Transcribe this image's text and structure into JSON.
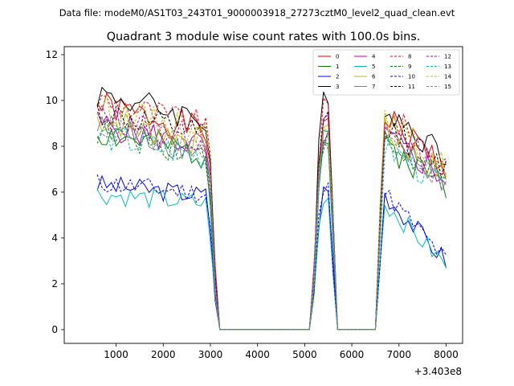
{
  "chart_data": {
    "type": "line",
    "suptitle": "Data file: modeM0/AS1T03_243T01_9000003918_27273cztM0_level2_quad_clean.evt",
    "title": "Quadrant 3 module wise count rates with 100.0s bins.",
    "xlabel": "",
    "ylabel": "",
    "x_offset_label": "+3.403e8",
    "xlim": [
      -100,
      8350
    ],
    "ylim": [
      -0.6,
      12.35
    ],
    "xticks": [
      1000,
      2000,
      3000,
      4000,
      5000,
      6000,
      7000,
      8000
    ],
    "yticks": [
      0,
      2,
      4,
      6,
      8,
      10,
      12
    ],
    "legend_position": "top-right",
    "series": [
      {
        "name": "0",
        "color": "#e00000",
        "dash": "solid",
        "style": "A",
        "offset": 0.6,
        "seed": 1
      },
      {
        "name": "1",
        "color": "#008000",
        "dash": "solid",
        "style": "A",
        "offset": -0.6,
        "seed": 2
      },
      {
        "name": "2",
        "color": "#0000ff",
        "dash": "solid",
        "style": "B",
        "offset": 0.2,
        "seed": 3
      },
      {
        "name": "3",
        "color": "#000000",
        "dash": "solid",
        "style": "A",
        "offset": 1.1,
        "seed": 4
      },
      {
        "name": "4",
        "color": "#bf00bf",
        "dash": "solid",
        "style": "A",
        "offset": -0.2,
        "seed": 5
      },
      {
        "name": "5",
        "color": "#00bfbf",
        "dash": "solid",
        "style": "B",
        "offset": -0.4,
        "seed": 6
      },
      {
        "name": "6",
        "color": "#bfbf00",
        "dash": "solid",
        "style": "A",
        "offset": 0.0,
        "seed": 7
      },
      {
        "name": "7",
        "color": "#808080",
        "dash": "solid",
        "style": "A",
        "offset": -0.4,
        "seed": 8
      },
      {
        "name": "8",
        "color": "#ff0000",
        "dash": "dashed",
        "style": "A",
        "offset": 0.8,
        "seed": 9
      },
      {
        "name": "9",
        "color": "#008000",
        "dash": "dashed",
        "style": "A",
        "offset": -0.5,
        "seed": 10
      },
      {
        "name": "10",
        "color": "#0000ff",
        "dash": "dashed",
        "style": "B",
        "offset": 0.3,
        "seed": 11
      },
      {
        "name": "11",
        "color": "#000000",
        "dash": "dashed",
        "style": "A",
        "offset": 0.3,
        "seed": 12
      },
      {
        "name": "12",
        "color": "#bf00bf",
        "dash": "dashed",
        "style": "A",
        "offset": 0.1,
        "seed": 13
      },
      {
        "name": "13",
        "color": "#00bfbf",
        "dash": "dashed",
        "style": "A",
        "offset": -0.7,
        "seed": 14
      },
      {
        "name": "14",
        "color": "#bfbf00",
        "dash": "dashed",
        "style": "A",
        "offset": 0.5,
        "seed": 15
      },
      {
        "name": "15",
        "color": "#808080",
        "dash": "dashed",
        "style": "A",
        "offset": -0.3,
        "seed": 16
      }
    ]
  }
}
